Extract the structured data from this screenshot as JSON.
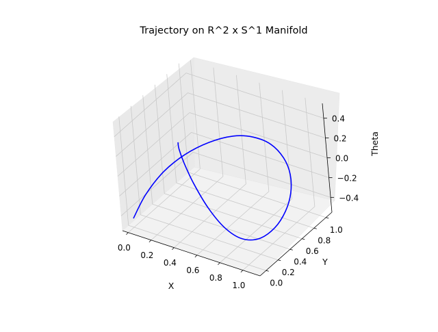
{
  "chart_data": {
    "type": "line",
    "title": "Trajectory on R^2 x S^1 Manifold",
    "xlabel": "X",
    "ylabel": "Y",
    "zlabel": "Theta",
    "xlim": [
      -0.05,
      1.15
    ],
    "ylim": [
      -0.1,
      1.1
    ],
    "zlim": [
      -0.55,
      0.55
    ],
    "x_ticks": [
      "0.0",
      "0.2",
      "0.4",
      "0.6",
      "0.8",
      "1.0"
    ],
    "y_ticks": [
      "0.0",
      "0.2",
      "0.4",
      "0.6",
      "0.8",
      "1.0"
    ],
    "z_ticks": [
      "−0.4",
      "−0.2",
      "0.0",
      "0.2",
      "0.4"
    ],
    "grid": true,
    "series": [
      {
        "color": "#0000ff",
        "points": [
          {
            "x": 0.0,
            "y": 0.0,
            "z": -0.46
          },
          {
            "x": 0.03,
            "y": 0.17,
            "z": -0.3
          },
          {
            "x": 0.11,
            "y": 0.34,
            "z": -0.13
          },
          {
            "x": 0.23,
            "y": 0.49,
            "z": 0.01
          },
          {
            "x": 0.38,
            "y": 0.62,
            "z": 0.12
          },
          {
            "x": 0.55,
            "y": 0.71,
            "z": 0.2
          },
          {
            "x": 0.7,
            "y": 0.76,
            "z": 0.22
          },
          {
            "x": 0.84,
            "y": 0.78,
            "z": 0.19
          },
          {
            "x": 0.95,
            "y": 0.77,
            "z": 0.1
          },
          {
            "x": 1.02,
            "y": 0.73,
            "z": -0.02
          },
          {
            "x": 1.05,
            "y": 0.66,
            "z": -0.16
          },
          {
            "x": 1.04,
            "y": 0.57,
            "z": -0.3
          },
          {
            "x": 0.99,
            "y": 0.47,
            "z": -0.43
          },
          {
            "x": 0.9,
            "y": 0.37,
            "z": -0.52
          },
          {
            "x": 0.79,
            "y": 0.29,
            "z": -0.52
          },
          {
            "x": 0.68,
            "y": 0.23,
            "z": -0.42
          },
          {
            "x": 0.57,
            "y": 0.19,
            "z": -0.24
          },
          {
            "x": 0.47,
            "y": 0.17,
            "z": -0.02
          },
          {
            "x": 0.4,
            "y": 0.17,
            "z": 0.16
          },
          {
            "x": 0.36,
            "y": 0.18,
            "z": 0.28
          },
          {
            "x": 0.35,
            "y": 0.19,
            "z": 0.34
          }
        ]
      }
    ]
  }
}
